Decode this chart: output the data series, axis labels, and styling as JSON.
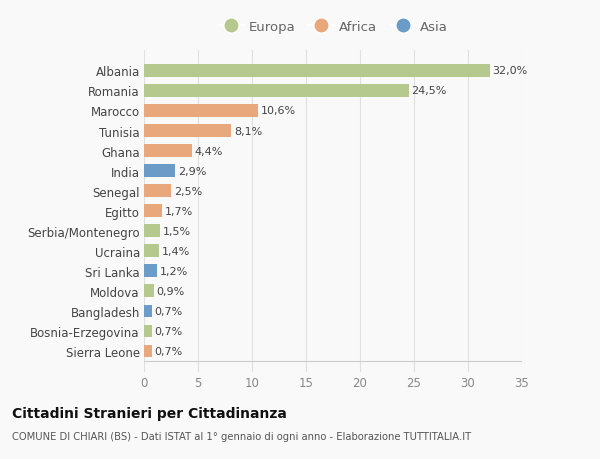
{
  "categories": [
    "Albania",
    "Romania",
    "Marocco",
    "Tunisia",
    "Ghana",
    "India",
    "Senegal",
    "Egitto",
    "Serbia/Montenegro",
    "Ucraina",
    "Sri Lanka",
    "Moldova",
    "Bangladesh",
    "Bosnia-Erzegovina",
    "Sierra Leone"
  ],
  "values": [
    32.0,
    24.5,
    10.6,
    8.1,
    4.4,
    2.9,
    2.5,
    1.7,
    1.5,
    1.4,
    1.2,
    0.9,
    0.7,
    0.7,
    0.7
  ],
  "labels": [
    "32,0%",
    "24,5%",
    "10,6%",
    "8,1%",
    "4,4%",
    "2,9%",
    "2,5%",
    "1,7%",
    "1,5%",
    "1,4%",
    "1,2%",
    "0,9%",
    "0,7%",
    "0,7%",
    "0,7%"
  ],
  "continents": [
    "Europa",
    "Europa",
    "Africa",
    "Africa",
    "Africa",
    "Asia",
    "Africa",
    "Africa",
    "Europa",
    "Europa",
    "Asia",
    "Europa",
    "Asia",
    "Europa",
    "Africa"
  ],
  "colors": {
    "Europa": "#b5c98e",
    "Africa": "#e8a87c",
    "Asia": "#6b9bc7"
  },
  "title": "Cittadini Stranieri per Cittadinanza",
  "subtitle": "COMUNE DI CHIARI (BS) - Dati ISTAT al 1° gennaio di ogni anno - Elaborazione TUTTITALIA.IT",
  "xlim": [
    0,
    35
  ],
  "xticks": [
    0,
    5,
    10,
    15,
    20,
    25,
    30,
    35
  ],
  "background_color": "#f9f9f9",
  "grid_color": "#e0e0e0"
}
